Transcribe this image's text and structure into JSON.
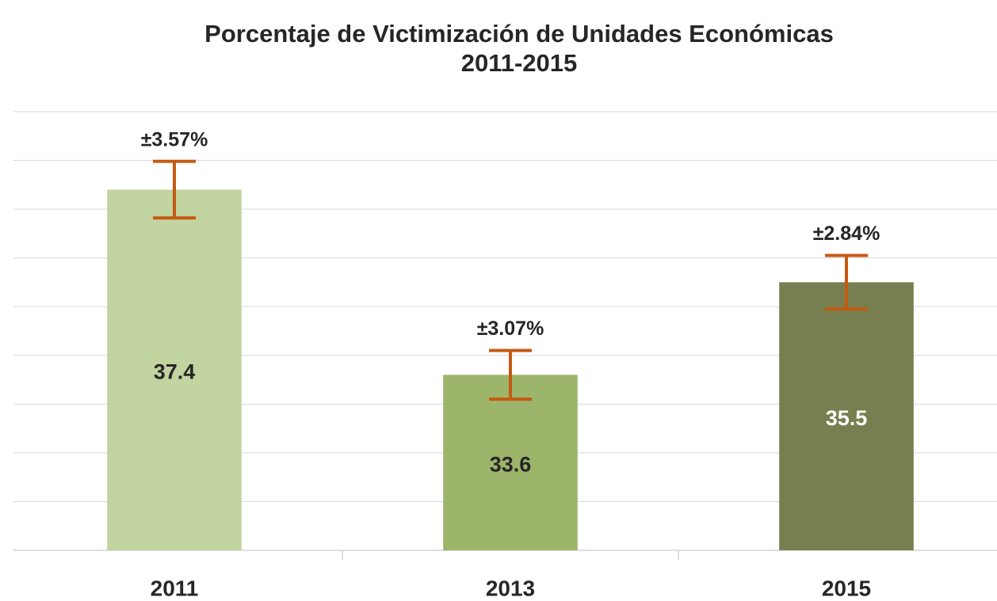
{
  "chart_data": {
    "type": "bar",
    "title": "Porcentaje de Victimización de Unidades Económicas",
    "subtitle": "2011-2015",
    "categories": [
      "2011",
      "2013",
      "2015"
    ],
    "values": [
      37.4,
      33.6,
      35.5
    ],
    "errors": [
      0.58,
      0.5,
      0.55
    ],
    "annotations": [
      "±3.57%",
      "±3.07%",
      "±2.84%"
    ],
    "colors": [
      "#c2d4a0",
      "#9db56b",
      "#777f50"
    ],
    "label_colors": [
      "#262626",
      "#262626",
      "#ffffff"
    ],
    "error_color": "#c55a11",
    "ylim": [
      30,
      39
    ],
    "yticks": [
      30,
      31,
      32,
      33,
      34,
      35,
      36,
      37,
      38,
      39
    ],
    "grid": true
  }
}
